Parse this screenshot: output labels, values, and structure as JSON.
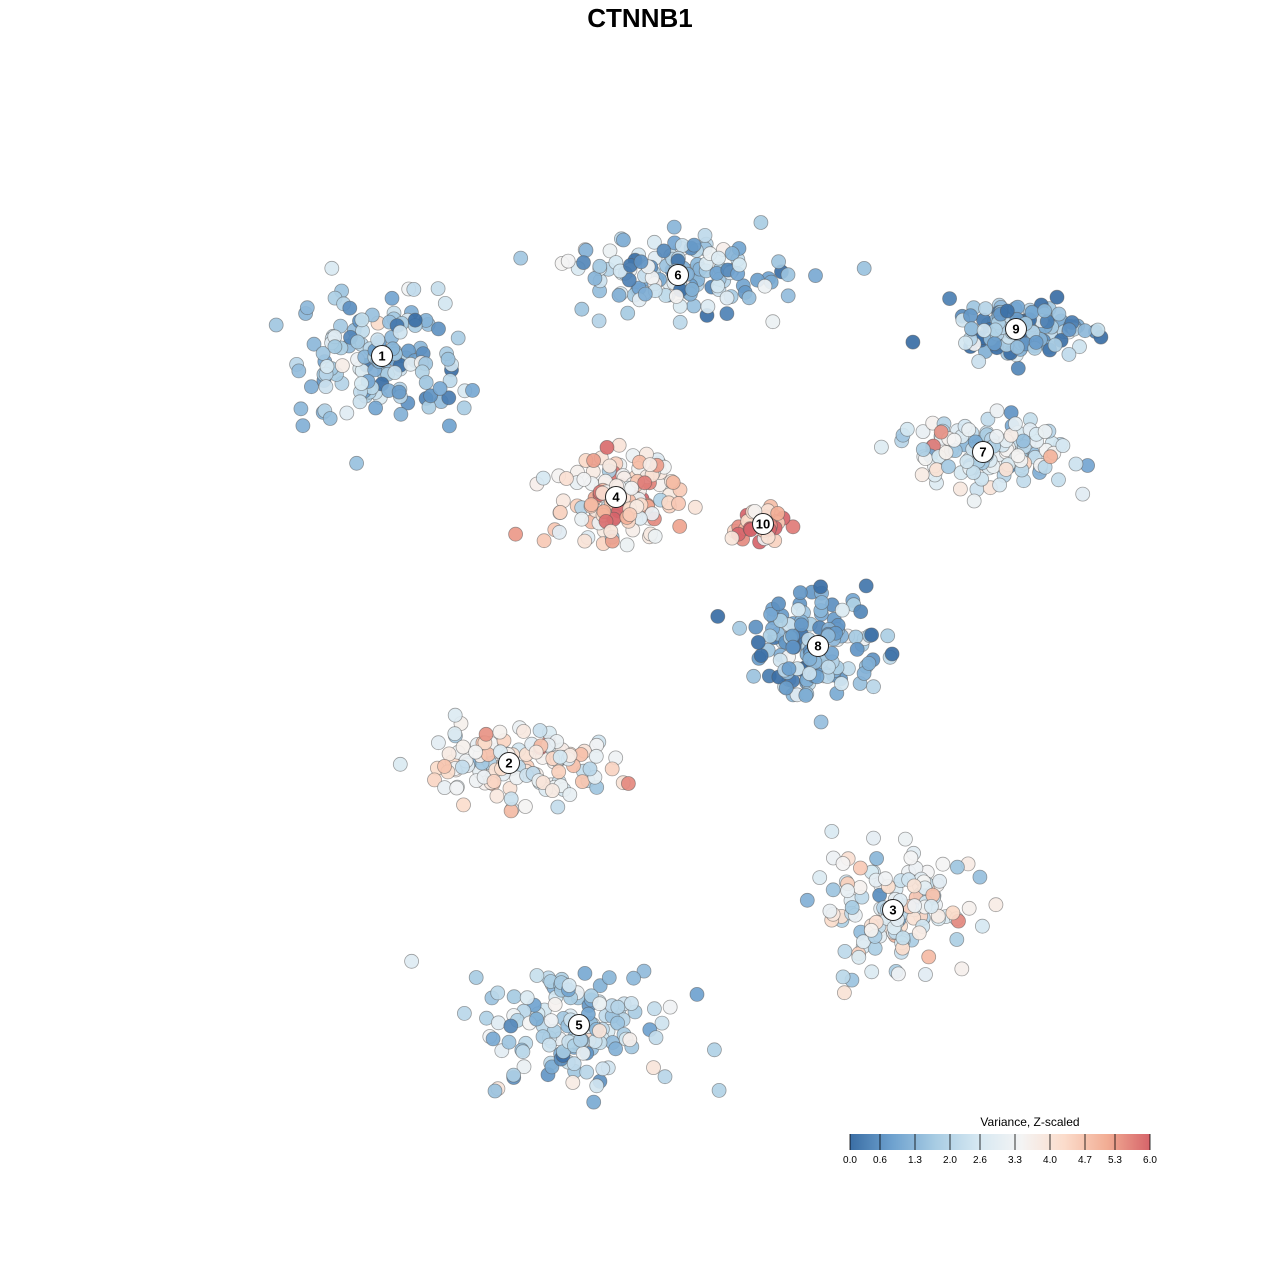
{
  "chart_data": {
    "type": "scatter",
    "title": "CTNNB1",
    "xlabel": "",
    "ylabel": "",
    "grid": false,
    "axes_visible": false,
    "color_scale": {
      "title": "Variance, Z-scaled",
      "min": 0.0,
      "max": 6.0,
      "ticks": [
        "0.0",
        "0.6",
        "1.3",
        "2.0",
        "2.6",
        "3.3",
        "4.0",
        "4.7",
        "5.3",
        "6.0"
      ],
      "colors": [
        "#3a6ea5",
        "#6fa2cf",
        "#a8cce3",
        "#d6e8f2",
        "#f4f4f4",
        "#fbdccb",
        "#f2ad94",
        "#d6646a"
      ]
    },
    "legend_placement": "bottom-right",
    "clusters": [
      {
        "id": "1",
        "x": -25.8,
        "y": 28.4,
        "spread_x": 7.5,
        "spread_y": 6.0,
        "mean_value": 1.6
      },
      {
        "id": "2",
        "x": -13.1,
        "y": -12.3,
        "spread_x": 8.0,
        "spread_y": 3.2,
        "mean_value": 3.4
      },
      {
        "id": "3",
        "x": 25.3,
        "y": -27.0,
        "spread_x": 7.5,
        "spread_y": 5.0,
        "mean_value": 2.9
      },
      {
        "id": "4",
        "x": -2.4,
        "y": 14.3,
        "spread_x": 5.5,
        "spread_y": 4.5,
        "mean_value": 4.1
      },
      {
        "id": "5",
        "x": -6.1,
        "y": -38.5,
        "spread_x": 9.0,
        "spread_y": 5.5,
        "mean_value": 2.0
      },
      {
        "id": "6",
        "x": 3.8,
        "y": 36.5,
        "spread_x": 9.5,
        "spread_y": 3.5,
        "mean_value": 1.8
      },
      {
        "id": "7",
        "x": 34.3,
        "y": 18.8,
        "spread_x": 8.0,
        "spread_y": 3.0,
        "mean_value": 2.5
      },
      {
        "id": "8",
        "x": 17.8,
        "y": -0.6,
        "spread_x": 6.0,
        "spread_y": 4.5,
        "mean_value": 1.2
      },
      {
        "id": "9",
        "x": 37.6,
        "y": 31.1,
        "spread_x": 6.0,
        "spread_y": 2.5,
        "mean_value": 1.2
      },
      {
        "id": "10",
        "x": 12.3,
        "y": 11.6,
        "spread_x": 2.2,
        "spread_y": 2.0,
        "mean_value": 5.3
      }
    ]
  }
}
